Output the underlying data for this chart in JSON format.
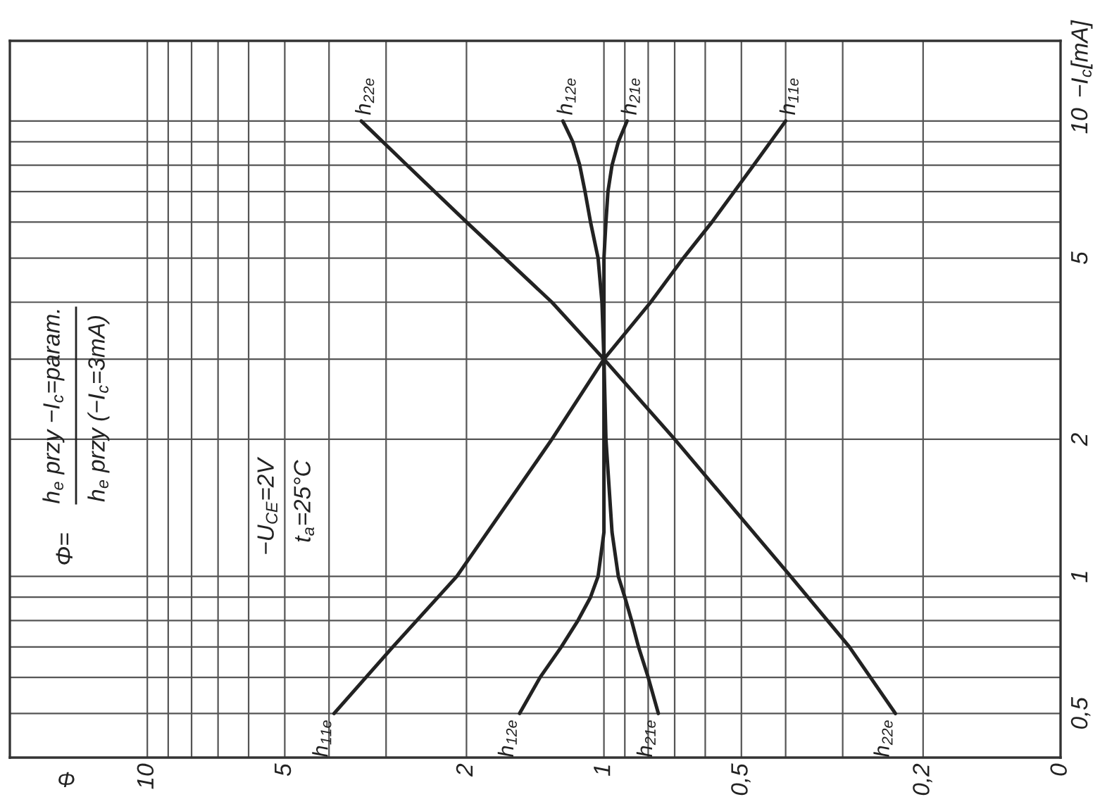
{
  "chart_data": {
    "type": "line",
    "xlabel": "Φ",
    "ylabel": "−I$_{c}$[mA]",
    "annotations": [
      "Φ=",
      "h$_{e}$ przy −I$_{c}$=param.",
      "h$_{e}$ przy (−I$_{c}$=3mA)",
      "−U$_{CE}$=2V",
      "t$_{a}$=25°C"
    ],
    "series": [
      {
        "name": "h$_{11e}$",
        "color": "#222222",
        "x": [
          3.9,
          2.9,
          2.1,
          1.3,
          1,
          0.79,
          0.67,
          0.58,
          0.47,
          0.4
        ],
        "values": [
          0.5,
          0.7,
          1,
          2,
          3,
          4,
          5,
          6,
          8,
          10
        ]
      },
      {
        "name": "h$_{12e}$",
        "color": "#222222",
        "x": [
          1.53,
          1.38,
          1.24,
          1.14,
          1.07,
          1.03,
          1,
          1,
          1,
          1.01,
          1.03,
          1.07,
          1.1,
          1.13,
          1.17,
          1.23
        ],
        "values": [
          0.5,
          0.6,
          0.7,
          0.8,
          0.9,
          1,
          1.25,
          2,
          3,
          4,
          5,
          6,
          7,
          8,
          9,
          10
        ]
      },
      {
        "name": "h$_{21e}$",
        "color": "#222222",
        "x": [
          0.76,
          0.8,
          0.84,
          0.87,
          0.9,
          0.93,
          0.96,
          0.99,
          1,
          1,
          0.99,
          0.98,
          0.96,
          0.93,
          0.89
        ],
        "values": [
          0.5,
          0.6,
          0.7,
          0.8,
          0.9,
          1,
          1.25,
          2,
          3,
          5,
          6,
          7,
          8,
          9,
          10
        ]
      },
      {
        "name": "h$_{22e}$",
        "color": "#222222",
        "x": [
          0.23,
          0.29,
          0.39,
          0.7,
          1,
          1.3,
          2,
          2.7,
          3.4
        ],
        "values": [
          0.5,
          0.7,
          1,
          2,
          3,
          4,
          6,
          8,
          10
        ]
      }
    ],
    "xlim": [
      20,
      0.1
    ],
    "xticks": [
      {
        "value": 0.1,
        "label": "0"
      },
      {
        "value": 0.2,
        "label": "0,2"
      },
      {
        "value": 0.3,
        "label": null
      },
      {
        "value": 0.4,
        "label": null
      },
      {
        "value": 0.5,
        "label": "0,5"
      },
      {
        "value": 0.6,
        "label": null
      },
      {
        "value": 0.7,
        "label": null
      },
      {
        "value": 0.8,
        "label": null
      },
      {
        "value": 0.9,
        "label": null
      },
      1,
      2,
      {
        "value": 3,
        "label": null
      },
      {
        "value": 4,
        "label": null
      },
      5,
      {
        "value": 6,
        "label": null
      },
      {
        "value": 7,
        "label": null
      },
      {
        "value": 8,
        "label": null
      },
      {
        "value": 9,
        "label": null
      },
      10
    ],
    "ylim": [
      0.4,
      15
    ],
    "yticks": [
      {
        "value": 0.5,
        "label": "0,5"
      },
      {
        "value": 0.6,
        "label": null
      },
      {
        "value": 0.7,
        "label": null
      },
      {
        "value": 0.8,
        "label": null
      },
      {
        "value": 0.9,
        "label": null
      },
      1,
      2,
      {
        "value": 3,
        "label": null
      },
      {
        "value": 4,
        "label": null
      },
      5,
      {
        "value": 6,
        "label": null
      },
      {
        "value": 7,
        "label": null
      },
      {
        "value": 8,
        "label": null
      },
      {
        "value": 9,
        "label": null
      },
      10
    ],
    "log": "xy",
    "grid": true,
    "line_style": "solid"
  }
}
